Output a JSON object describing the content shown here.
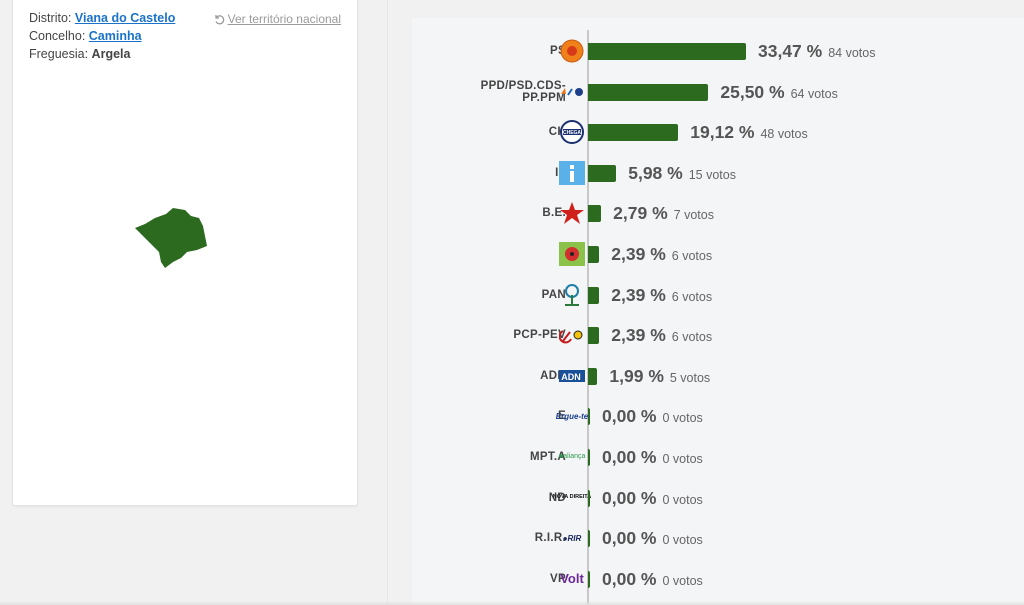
{
  "location": {
    "distrito_label": "Distrito:",
    "distrito": "Viana do Castelo",
    "concelho_label": "Concelho:",
    "concelho": "Caminha",
    "freguesia_label": "Freguesia:",
    "freguesia": "Argela",
    "national_link": "Ver território nacional"
  },
  "colors": {
    "bar": "#2b6a1f",
    "map": "#2b6a1f",
    "link": "#1a73c8"
  },
  "chart_data": {
    "type": "bar",
    "orientation": "horizontal",
    "categories": [
      "PS",
      "PPD/PSD.CDS-PP.PPM",
      "CH",
      "IL",
      "B.E.",
      "L",
      "PAN",
      "PCP-PEV",
      "ADN",
      "E",
      "MPT.A",
      "ND",
      "R.I.R.",
      "VP"
    ],
    "values": [
      33.47,
      25.5,
      19.12,
      5.98,
      2.79,
      2.39,
      2.39,
      2.39,
      1.99,
      0.0,
      0.0,
      0.0,
      0.0,
      0.0
    ],
    "rows": [
      {
        "party": "PS",
        "pct": "33,47 %",
        "votes": "84 votos",
        "logo": "ps-fist-rose-logo"
      },
      {
        "party": "PPD/PSD.CDS-PP.PPM",
        "party_lines": [
          "PPD/PSD.CDS-",
          "PP.PPM"
        ],
        "pct": "25,50 %",
        "votes": "64 votos",
        "logo": "ad-coalition-logo"
      },
      {
        "party": "CH",
        "pct": "19,12 %",
        "votes": "48 votos",
        "logo": "chega-logo"
      },
      {
        "party": "IL",
        "pct": "5,98 %",
        "votes": "15 votos",
        "logo": "il-logo"
      },
      {
        "party": "B.E.",
        "pct": "2,79 %",
        "votes": "7 votos",
        "logo": "be-star-logo"
      },
      {
        "party": "L",
        "pct": "2,39 %",
        "votes": "6 votos",
        "logo": "livre-poppy-logo"
      },
      {
        "party": "PAN",
        "pct": "2,39 %",
        "votes": "6 votos",
        "logo": "pan-tree-logo"
      },
      {
        "party": "PCP-PEV",
        "pct": "2,39 %",
        "votes": "6 votos",
        "logo": "cdu-hammer-sickle-logo"
      },
      {
        "party": "ADN",
        "pct": "1,99 %",
        "votes": "5 votos",
        "logo": "adn-logo"
      },
      {
        "party": "E",
        "pct": "0,00 %",
        "votes": "0 votos",
        "logo": "ergue-te-logo",
        "logo_text": "Ergue-te"
      },
      {
        "party": "MPT.A",
        "pct": "0,00 %",
        "votes": "0 votos",
        "logo": "mpt-clover-logo",
        "logo_text": "aliança"
      },
      {
        "party": "ND",
        "pct": "0,00 %",
        "votes": "0 votos",
        "logo": "nova-direita-logo",
        "logo_text": "NOVA DIREITA"
      },
      {
        "party": "R.I.R.",
        "pct": "0,00 %",
        "votes": "0 votos",
        "logo": "rir-logo",
        "logo_text": "RIR"
      },
      {
        "party": "VP",
        "pct": "0,00 %",
        "votes": "0 votos",
        "logo": "volt-logo",
        "logo_text": "Volt"
      }
    ],
    "xlim": [
      0,
      33.47
    ]
  }
}
